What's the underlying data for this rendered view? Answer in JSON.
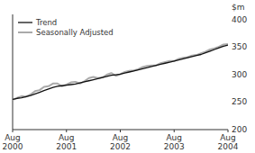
{
  "chart_data": {
    "type": "line",
    "ylabel": "$m",
    "categories": [
      "Aug\n2000",
      null,
      null,
      null,
      null,
      null,
      null,
      null,
      null,
      null,
      null,
      null,
      "Aug\n2001",
      null,
      null,
      null,
      null,
      null,
      null,
      null,
      null,
      null,
      null,
      null,
      "Aug\n2002",
      null,
      null,
      null,
      null,
      null,
      null,
      null,
      null,
      null,
      null,
      null,
      "Aug\n2003",
      null,
      null,
      null,
      null,
      null,
      null,
      null,
      null,
      null,
      null,
      null,
      "Aug\n2004"
    ],
    "series": [
      {
        "name": "Trend",
        "color": "#111111",
        "values": [
          255,
          257,
          258,
          260,
          262,
          265,
          268,
          271,
          274,
          277,
          279,
          280,
          281,
          282,
          283,
          285,
          287,
          289,
          291,
          293,
          295,
          297,
          299,
          300,
          301,
          303,
          305,
          307,
          309,
          311,
          313,
          315,
          317,
          319,
          321,
          323,
          325,
          327,
          329,
          331,
          333,
          335,
          337,
          340,
          343,
          346,
          349,
          352,
          354
        ]
      },
      {
        "name": "Seasonally Adjusted",
        "color": "#aaaaaa",
        "values": [
          254,
          258,
          261,
          260,
          264,
          270,
          272,
          278,
          279,
          284,
          284,
          279,
          282,
          286,
          287,
          284,
          288,
          294,
          296,
          294,
          295,
          300,
          303,
          298,
          301,
          305,
          307,
          308,
          310,
          314,
          316,
          317,
          317,
          321,
          323,
          325,
          325,
          329,
          331,
          332,
          335,
          336,
          339,
          342,
          346,
          348,
          351,
          355,
          356
        ]
      }
    ],
    "ylim": [
      200,
      410
    ],
    "yticks": [
      200,
      250,
      300,
      350,
      400
    ],
    "grid": false,
    "legend": "upper left"
  }
}
